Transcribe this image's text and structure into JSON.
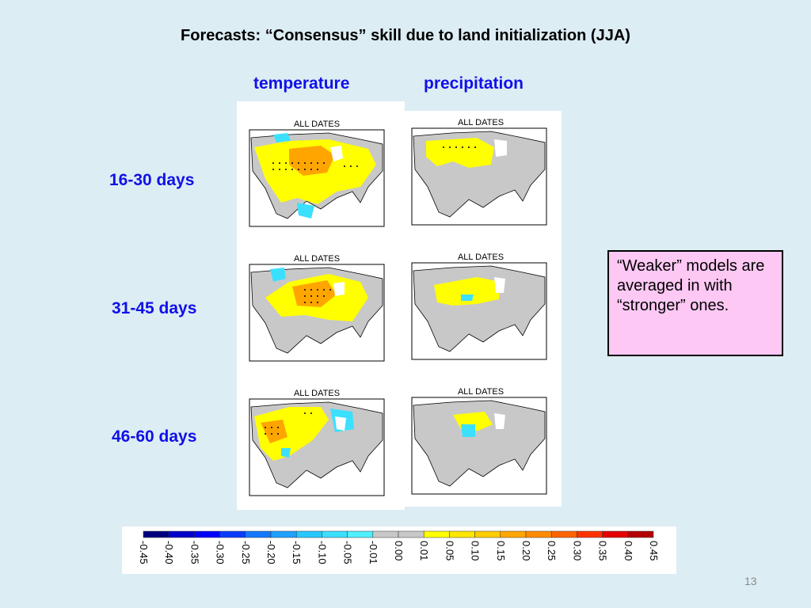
{
  "slide": {
    "title": "Forecasts:  “Consensus” skill due to land initialization (JJA)",
    "page_number": "13"
  },
  "columns": [
    "temperature",
    "precipitation"
  ],
  "rows": [
    "16-30 days",
    "31-45 days",
    "46-60 days"
  ],
  "map_title": "ALL DATES",
  "note": "“Weaker” models are averaged in with “stronger” ones.",
  "colorbar": {
    "labels": [
      "-0.45",
      "-0.40",
      "-0.35",
      "-0.30",
      "-0.25",
      "-0.20",
      "-0.15",
      "-0.10",
      "-0.05",
      "-0.01",
      "0.00",
      "0.01",
      "0.05",
      "0.10",
      "0.15",
      "0.20",
      "0.25",
      "0.30",
      "0.35",
      "0.40",
      "0.45"
    ],
    "colors": [
      "#00007f",
      "#0000c8",
      "#0000ff",
      "#0a3cff",
      "#1478ff",
      "#1ea0ff",
      "#28c8ff",
      "#3ce0ff",
      "#50f0ff",
      "#c8c8c8",
      "#c8c8c8",
      "#ffff00",
      "#ffe600",
      "#ffcc00",
      "#ffa500",
      "#ff8c00",
      "#ff6400",
      "#ff3200",
      "#e60000",
      "#b40000"
    ]
  },
  "colors": {
    "land_gray": "#c8c8c8",
    "skill_yellow": "#ffff00",
    "skill_orange": "#ffa500",
    "skill_cyan": "#3ce0ff",
    "text_blue": "#1010e8",
    "note_bg": "#fdc8f4"
  }
}
